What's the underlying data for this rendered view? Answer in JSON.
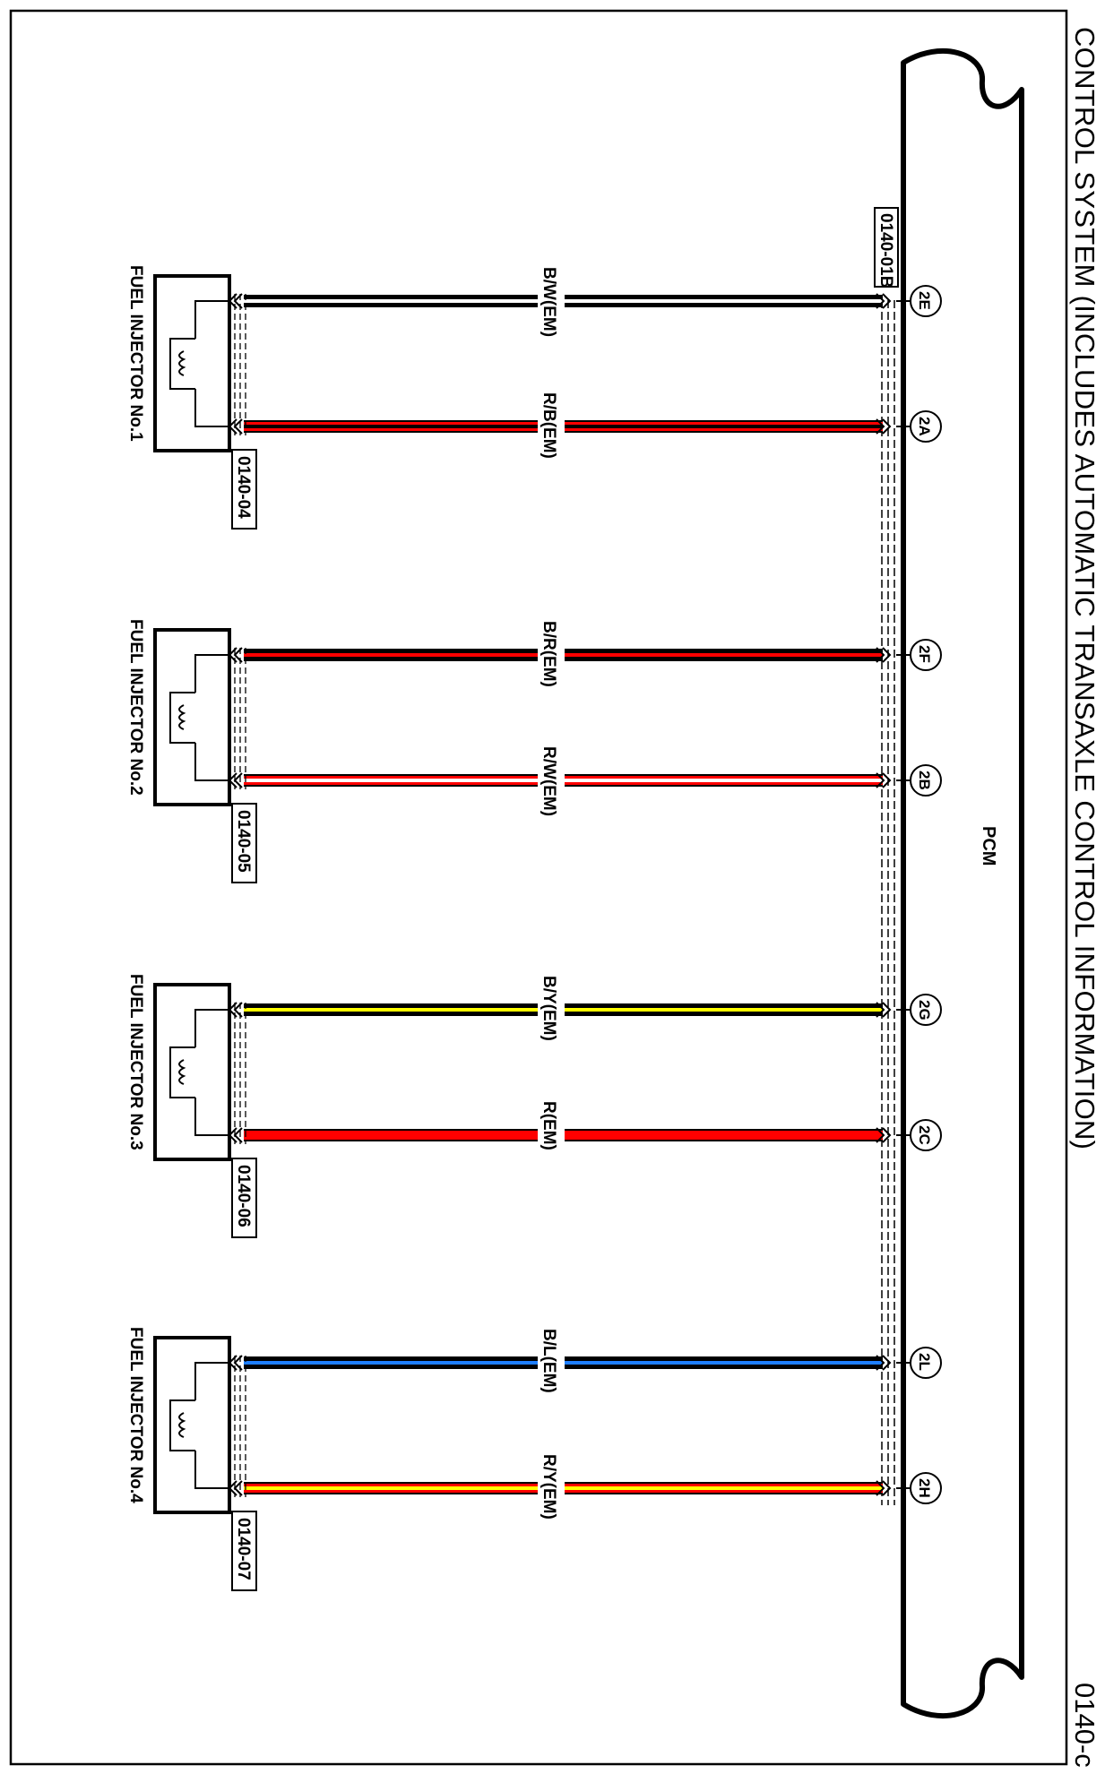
{
  "page_title": "CONTROL SYSTEM (INCLUDES AUTOMATIC TRANSAXLE CONTROL INFORMATION)",
  "page_code": "0140-c",
  "pcm": {
    "label": "PCM",
    "connector_code": "0140-01B"
  },
  "injectors": [
    {
      "name": "FUEL INJECTOR No.1",
      "connector_code": "0140-04",
      "wires": [
        {
          "pin": "2E",
          "label": "B/W(EM)",
          "color": "#000000",
          "stripe": "#ffffff"
        },
        {
          "pin": "2A",
          "label": "R/B(EM)",
          "color": "#ff0000",
          "stripe": "#000000"
        }
      ]
    },
    {
      "name": "FUEL INJECTOR No.2",
      "connector_code": "0140-05",
      "wires": [
        {
          "pin": "2F",
          "label": "B/R(EM)",
          "color": "#000000",
          "stripe": "#ff0000"
        },
        {
          "pin": "2B",
          "label": "R/W(EM)",
          "color": "#ff0000",
          "stripe": "#ffffff"
        }
      ]
    },
    {
      "name": "FUEL INJECTOR No.3",
      "connector_code": "0140-06",
      "wires": [
        {
          "pin": "2G",
          "label": "B/Y(EM)",
          "color": "#000000",
          "stripe": "#ffff00"
        },
        {
          "pin": "2C",
          "label": "R(EM)",
          "color": "#ff0000",
          "stripe": "#ff0000"
        }
      ]
    },
    {
      "name": "FUEL INJECTOR No.4",
      "connector_code": "0140-07",
      "wires": [
        {
          "pin": "2L",
          "label": "B/L(EM)",
          "color": "#000000",
          "stripe": "#1e7fff"
        },
        {
          "pin": "2H",
          "label": "R/Y(EM)",
          "color": "#ff0000",
          "stripe": "#ffff00"
        }
      ]
    }
  ]
}
